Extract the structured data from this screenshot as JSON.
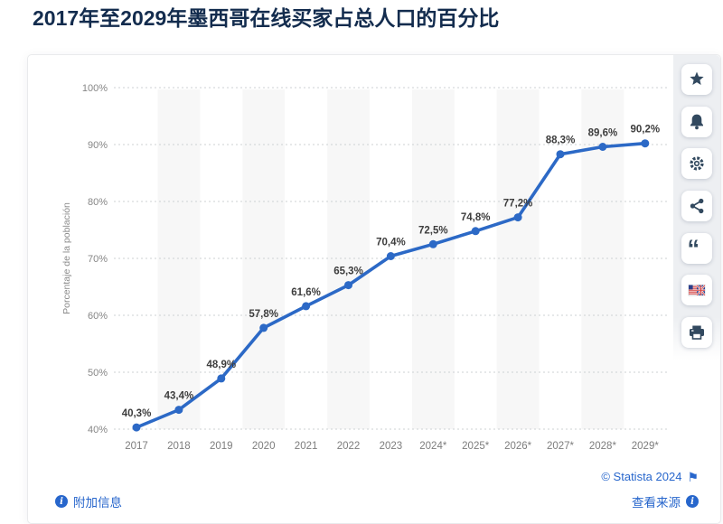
{
  "header": {
    "title": "2017年至2029年墨西哥在线买家占总人口的百分比"
  },
  "toolbar": {
    "icons": [
      "favorite-star",
      "notifications-bell",
      "settings-gear",
      "share",
      "cite-quote",
      "language-flag",
      "print"
    ],
    "quote_glyph": "“"
  },
  "chart_data": {
    "type": "line",
    "title": "",
    "categories": [
      "2017",
      "2018",
      "2019",
      "2020",
      "2021",
      "2022",
      "2023",
      "2024*",
      "2025*",
      "2026*",
      "2027*",
      "2028*",
      "2029*"
    ],
    "values": [
      40.3,
      43.4,
      48.9,
      57.8,
      61.6,
      65.3,
      70.4,
      72.5,
      74.8,
      77.2,
      88.3,
      89.6,
      90.2
    ],
    "point_labels": [
      "40,3%",
      "43,4%",
      "48,9%",
      "57,8%",
      "61,6%",
      "65,3%",
      "70,4%",
      "72,5%",
      "74,8%",
      "77,2%",
      "88,3%",
      "89,6%",
      "90,2%"
    ],
    "xlabel": "",
    "ylabel": "Porcentaje de la población",
    "ylim": [
      40,
      100
    ],
    "ytick_step": 10,
    "yticks": [
      "40%",
      "50%",
      "60%",
      "70%",
      "80%",
      "90%",
      "100%"
    ],
    "grid": true,
    "legend": false,
    "line_color": "#2c69c6",
    "band_color": "#f7f7f7",
    "label_color": "#3d3d3d",
    "tick_color": "#7d7d7d"
  },
  "footer": {
    "more_info": "附加信息",
    "copyright": "© Statista 2024",
    "show_source": "查看来源",
    "flag_glyph": "⚑",
    "info_glyph": "i",
    "link_color": "#2766cc"
  }
}
